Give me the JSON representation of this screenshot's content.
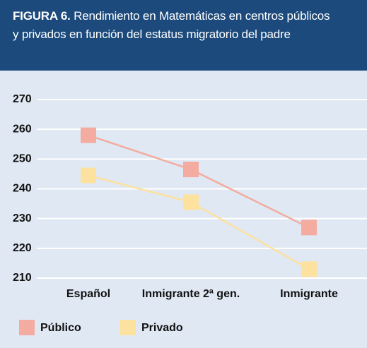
{
  "chart_data": {
    "type": "line",
    "figure_label": "FIGURA 6.",
    "title": "Rendimiento en Matemáticas en centros públicos y privados en función del estatus migratorio del padre",
    "categories": [
      "Español",
      "Inmigrante 2ª gen.",
      "Inmigrante"
    ],
    "series": [
      {
        "name": "Público",
        "color": "#f4aba0",
        "values": [
          258,
          246.5,
          227
        ]
      },
      {
        "name": "Privado",
        "color": "#fde19f",
        "values": [
          244.5,
          235.5,
          213
        ]
      }
    ],
    "ylim": [
      210,
      270
    ],
    "yticks": [
      210,
      220,
      230,
      240,
      250,
      260,
      270
    ],
    "grid": true
  }
}
